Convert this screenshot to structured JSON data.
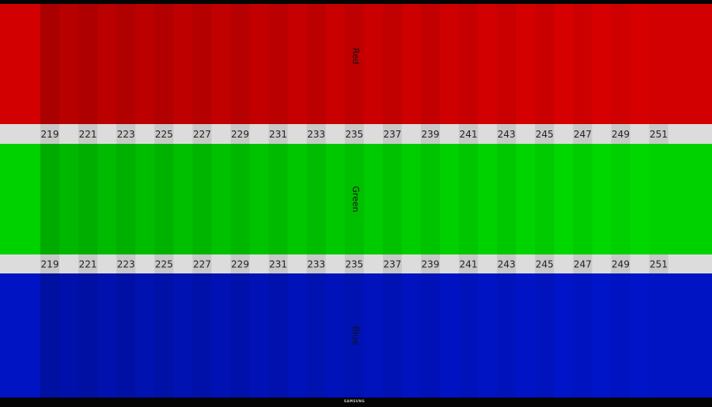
{
  "bands": [
    {
      "label": "Red"
    },
    {
      "label": "Green"
    },
    {
      "label": "Blue"
    }
  ],
  "strips": [
    {
      "labels": [
        219,
        221,
        223,
        225,
        227,
        229,
        231,
        233,
        235,
        237,
        239,
        241,
        243,
        245,
        247,
        249,
        251
      ]
    },
    {
      "labels": [
        219,
        221,
        223,
        225,
        227,
        229,
        231,
        233,
        235,
        237,
        239,
        241,
        243,
        245,
        247,
        249,
        251
      ]
    }
  ],
  "brand": "SAMSUNG"
}
